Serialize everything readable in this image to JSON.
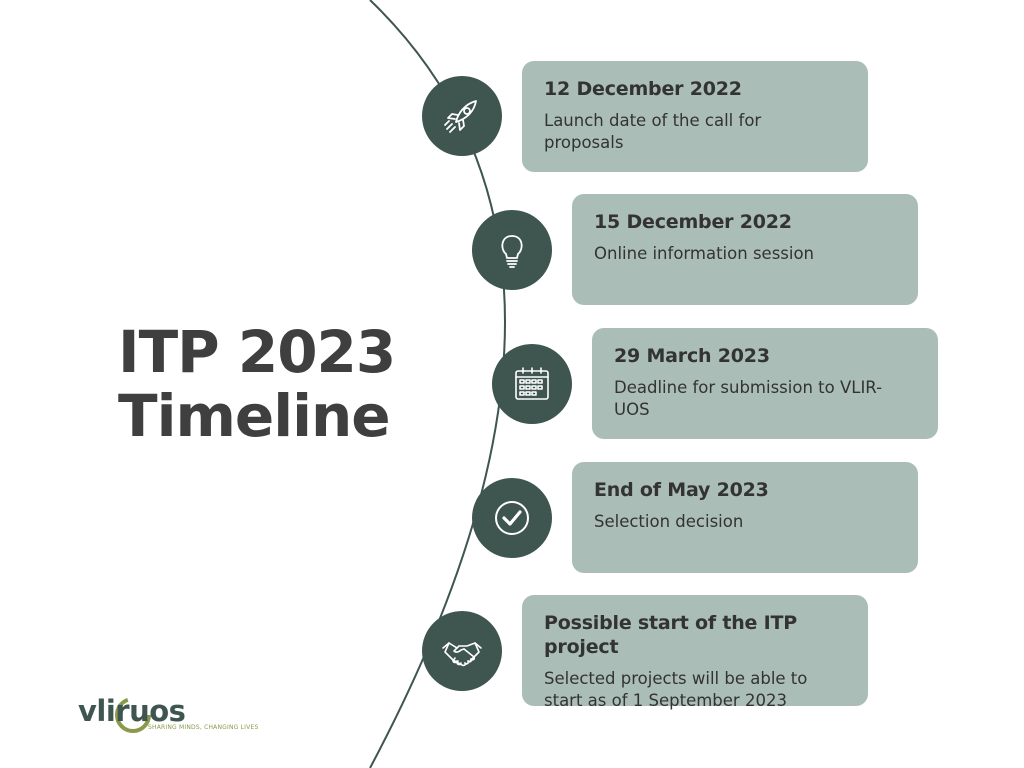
{
  "title": {
    "line1": "ITP 2023",
    "line2": "Timeline"
  },
  "colors": {
    "marker": "#3f5550",
    "card": "#aabdb7",
    "text": "#333333",
    "title": "#3f3f3f",
    "logo_accent": "#8a9a4a"
  },
  "milestones": [
    {
      "icon": "rocket-icon",
      "date": "12 December 2022",
      "description": "Launch date of the call for proposals"
    },
    {
      "icon": "lightbulb-icon",
      "date": "15 December 2022",
      "description": "Online information session"
    },
    {
      "icon": "calendar-icon",
      "date": "29 March 2023",
      "description": "Deadline for submission to VLIR-UOS"
    },
    {
      "icon": "checkmark-icon",
      "date": "End of May 2023",
      "description": "Selection decision"
    },
    {
      "icon": "handshake-icon",
      "date": "Possible start of the ITP project",
      "description": "Selected projects will be able to start as of 1 September 2023"
    }
  ],
  "logo": {
    "wordmark": "vliruos",
    "tagline": "SHARING MINDS, CHANGING LIVES"
  }
}
